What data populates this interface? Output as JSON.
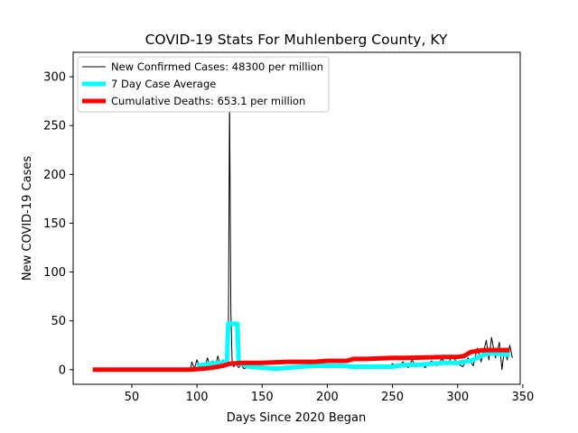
{
  "chart_data": {
    "type": "line",
    "title": "COVID-19 Stats For Muhlenberg County, KY",
    "xlabel": "Days Since 2020 Began",
    "ylabel": "New COVID-19 Cases",
    "xlim": [
      5,
      348
    ],
    "ylim": [
      -15,
      325
    ],
    "xticks": [
      50,
      100,
      150,
      200,
      250,
      300,
      350
    ],
    "yticks": [
      0,
      50,
      100,
      150,
      200,
      250,
      300
    ],
    "grid": false,
    "legend_position": "top-left",
    "series": [
      {
        "name": "New Confirmed Cases: 48300 per million",
        "color": "#000000",
        "line_width": 1,
        "points": [
          [
            20,
            0
          ],
          [
            40,
            0
          ],
          [
            60,
            0
          ],
          [
            80,
            0
          ],
          [
            95,
            0
          ],
          [
            96,
            8
          ],
          [
            98,
            1
          ],
          [
            100,
            10
          ],
          [
            102,
            3
          ],
          [
            104,
            6
          ],
          [
            106,
            2
          ],
          [
            108,
            12
          ],
          [
            110,
            4
          ],
          [
            112,
            9
          ],
          [
            114,
            2
          ],
          [
            116,
            14
          ],
          [
            118,
            5
          ],
          [
            120,
            10
          ],
          [
            122,
            3
          ],
          [
            124,
            8
          ],
          [
            125,
            280
          ],
          [
            126,
            60
          ],
          [
            127,
            8
          ],
          [
            128,
            3
          ],
          [
            130,
            6
          ],
          [
            132,
            2
          ],
          [
            134,
            5
          ],
          [
            136,
            1
          ],
          [
            140,
            3
          ],
          [
            145,
            1
          ],
          [
            150,
            2
          ],
          [
            155,
            0
          ],
          [
            160,
            3
          ],
          [
            165,
            1
          ],
          [
            170,
            4
          ],
          [
            175,
            2
          ],
          [
            180,
            5
          ],
          [
            185,
            3
          ],
          [
            190,
            6
          ],
          [
            195,
            2
          ],
          [
            200,
            5
          ],
          [
            205,
            3
          ],
          [
            210,
            6
          ],
          [
            215,
            2
          ],
          [
            220,
            4
          ],
          [
            225,
            1
          ],
          [
            230,
            5
          ],
          [
            235,
            2
          ],
          [
            240,
            4
          ],
          [
            245,
            1
          ],
          [
            250,
            6
          ],
          [
            255,
            3
          ],
          [
            258,
            8
          ],
          [
            262,
            2
          ],
          [
            265,
            10
          ],
          [
            268,
            3
          ],
          [
            272,
            7
          ],
          [
            275,
            2
          ],
          [
            280,
            9
          ],
          [
            284,
            4
          ],
          [
            288,
            11
          ],
          [
            292,
            5
          ],
          [
            296,
            14
          ],
          [
            300,
            6
          ],
          [
            304,
            3
          ],
          [
            308,
            12
          ],
          [
            312,
            4
          ],
          [
            315,
            22
          ],
          [
            318,
            8
          ],
          [
            322,
            30
          ],
          [
            324,
            10
          ],
          [
            326,
            33
          ],
          [
            329,
            12
          ],
          [
            332,
            28
          ],
          [
            334,
            0
          ],
          [
            336,
            22
          ],
          [
            338,
            10
          ],
          [
            340,
            25
          ],
          [
            342,
            12
          ]
        ]
      },
      {
        "name": "7 Day Case Average",
        "color": "#00ffff",
        "line_width": 5,
        "points": [
          [
            100,
            4
          ],
          [
            110,
            6
          ],
          [
            118,
            7
          ],
          [
            123,
            8
          ],
          [
            124,
            47
          ],
          [
            131,
            47
          ],
          [
            132,
            7
          ],
          [
            140,
            3
          ],
          [
            150,
            2
          ],
          [
            160,
            1
          ],
          [
            170,
            2
          ],
          [
            180,
            3
          ],
          [
            190,
            4
          ],
          [
            200,
            4
          ],
          [
            210,
            4
          ],
          [
            220,
            3
          ],
          [
            230,
            3
          ],
          [
            240,
            3
          ],
          [
            250,
            3
          ],
          [
            260,
            5
          ],
          [
            270,
            5
          ],
          [
            280,
            6
          ],
          [
            290,
            7
          ],
          [
            300,
            7
          ],
          [
            310,
            9
          ],
          [
            318,
            14
          ],
          [
            325,
            17
          ],
          [
            332,
            16
          ],
          [
            340,
            15
          ]
        ]
      },
      {
        "name": "Cumulative Deaths: 653.1 per million",
        "color": "#ff0000",
        "line_width": 5,
        "points": [
          [
            20,
            0
          ],
          [
            60,
            0
          ],
          [
            95,
            0
          ],
          [
            105,
            1
          ],
          [
            112,
            2
          ],
          [
            120,
            4
          ],
          [
            125,
            6
          ],
          [
            135,
            7
          ],
          [
            150,
            7
          ],
          [
            170,
            8
          ],
          [
            190,
            8
          ],
          [
            200,
            9
          ],
          [
            215,
            9
          ],
          [
            220,
            11
          ],
          [
            230,
            11
          ],
          [
            250,
            12
          ],
          [
            260,
            12
          ],
          [
            290,
            13
          ],
          [
            300,
            13
          ],
          [
            305,
            14
          ],
          [
            310,
            18
          ],
          [
            320,
            20
          ],
          [
            340,
            20
          ]
        ]
      }
    ]
  }
}
